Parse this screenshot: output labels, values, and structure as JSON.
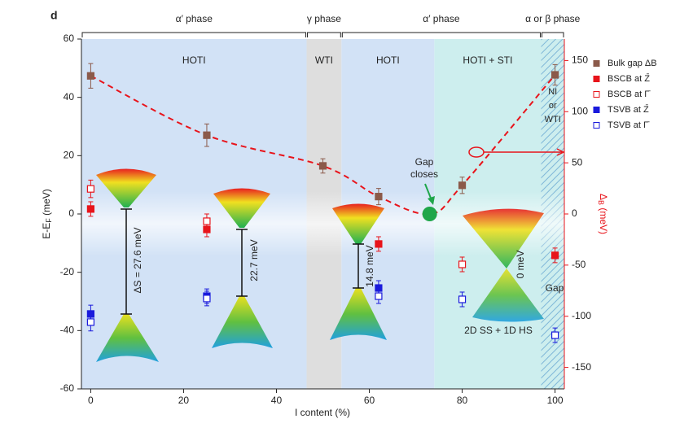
{
  "chart_data": {
    "type": "scatter",
    "panel_label": "d",
    "xlabel": "I content (%)",
    "ylabel": [
      "E-E",
      "F",
      " (meV)"
    ],
    "y2label": [
      "Δ",
      "B",
      " (meV)"
    ],
    "xlim": [
      -2,
      102
    ],
    "xticks": [
      0,
      20,
      40,
      60,
      80,
      100
    ],
    "ylim": [
      -60,
      60
    ],
    "yticks": [
      -60,
      -40,
      -20,
      0,
      20,
      40,
      60
    ],
    "y2lim": [
      -171,
      171
    ],
    "y2ticks": [
      -150,
      -100,
      -50,
      0,
      50,
      100,
      150
    ],
    "y2color": "#e8141b",
    "phases": [
      {
        "label": "α′ phase",
        "from": -2,
        "to": 46.5
      },
      {
        "label": "γ phase",
        "from": 46.5,
        "to": 54
      },
      {
        "label": "α′ phase",
        "from": 54,
        "to": 97
      },
      {
        "label": "α or β phase",
        "from": 97,
        "to": 102
      }
    ],
    "regions": [
      {
        "label": "HOTI",
        "from": -2,
        "to": 46.5,
        "color": "#d2e2f6"
      },
      {
        "label": "WTI",
        "from": 46.5,
        "to": 54,
        "color": "#dedede"
      },
      {
        "label": "HOTI",
        "from": 54,
        "to": 74,
        "color": "#d2e2f6"
      },
      {
        "label": "HOTI + STI",
        "from": 74,
        "to": 97,
        "color": "#cdeeee"
      },
      {
        "label": [
          "NI",
          "or",
          "WTI"
        ],
        "from": 97,
        "to": 102,
        "color": "#cdeeee"
      }
    ],
    "series": [
      {
        "name": "Bulk gap ΔB",
        "color": "#8b5a4a",
        "filled": true,
        "axis": "y2",
        "x": [
          0,
          25,
          50,
          62,
          80,
          100
        ],
        "values": [
          135,
          77,
          47,
          17,
          28,
          136
        ],
        "errors": [
          12,
          11,
          7,
          8,
          8,
          10
        ]
      },
      {
        "name": "BSCB at Z̄",
        "color": "#e8141b",
        "filled": true,
        "x": [
          0,
          25,
          62,
          100
        ],
        "values": [
          1.7,
          -5.3,
          -10.3,
          -14.2
        ],
        "errors": [
          2.5,
          2.5,
          2.5,
          2.5
        ]
      },
      {
        "name": "BSCB at Γ̄",
        "color": "#e8141b",
        "filled": false,
        "x": [
          0,
          25,
          80
        ],
        "values": [
          8.6,
          -2.5,
          -17.3
        ],
        "errors": [
          3,
          2.5,
          2.5
        ]
      },
      {
        "name": "TSVB at Z̄",
        "color": "#1a1adc",
        "filled": true,
        "x": [
          0,
          25,
          62
        ],
        "values": [
          -34.3,
          -28.2,
          -25.4
        ],
        "errors": [
          3,
          2.5,
          2.5
        ]
      },
      {
        "name": "TSVB at Γ̄",
        "color": "#1a1adc",
        "filled": false,
        "x": [
          0,
          25,
          62,
          80,
          100
        ],
        "values": [
          -37.1,
          -29,
          -28.2,
          -29.3,
          -41.6
        ],
        "errors": [
          3,
          2.5,
          2.5,
          2.5,
          2.5
        ]
      }
    ],
    "gap_point": {
      "x": 73,
      "value": 0,
      "axis": "y2",
      "color": "#1fa64a"
    },
    "trend_color": "#e8141b",
    "annotations": {
      "gap_closes": [
        "Gap",
        "closes"
      ],
      "delta1": "ΔS = 27.6 meV",
      "delta2": "22.7 meV",
      "delta3": "14.8 meV",
      "delta4": "0 meV",
      "surface": "2D SS + 1D HS",
      "gap": "Gap"
    }
  }
}
